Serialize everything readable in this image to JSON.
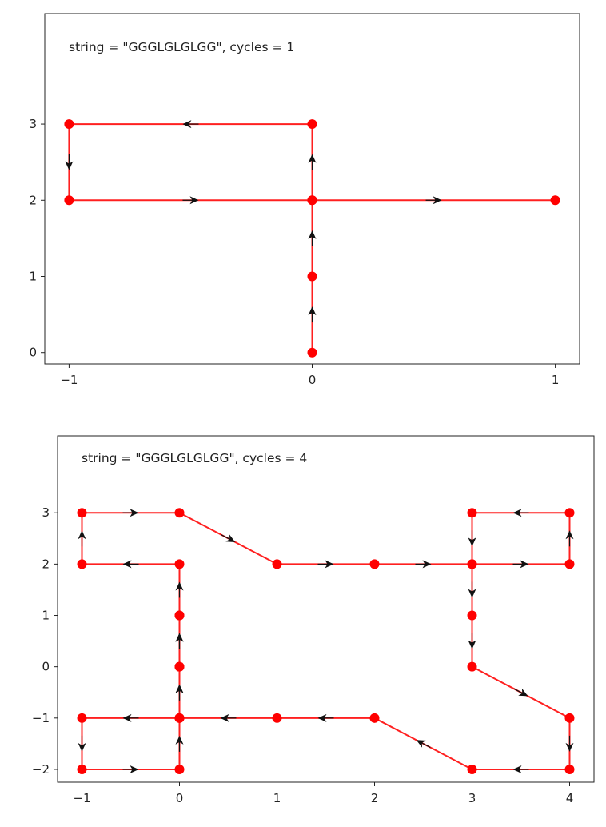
{
  "chart_data": [
    {
      "type": "line",
      "annotation": "string = \"GGGLGLGLGG\", cycles = 1",
      "x_ticks": [
        -1,
        0,
        1
      ],
      "x_tick_labels": [
        "−1",
        "0",
        "1"
      ],
      "y_ticks": [
        0,
        1,
        2,
        3
      ],
      "y_tick_labels": [
        "0",
        "1",
        "2",
        "3"
      ],
      "xlim": [
        -1.1,
        1.1
      ],
      "ylim": [
        -0.15,
        4.45
      ],
      "grid": false,
      "series": [
        {
          "color": "#ff0000",
          "x": [
            0,
            0,
            0,
            0,
            -1,
            -1,
            0,
            1
          ],
          "y": [
            0,
            1,
            2,
            3,
            3,
            2,
            2,
            2
          ]
        }
      ]
    },
    {
      "type": "line",
      "annotation": "string = \"GGGLGLGLGG\", cycles = 4",
      "x_ticks": [
        -1,
        0,
        1,
        2,
        3,
        4
      ],
      "x_tick_labels": [
        "−1",
        "0",
        "1",
        "2",
        "3",
        "4"
      ],
      "y_ticks": [
        -2,
        -1,
        0,
        1,
        2,
        3
      ],
      "y_tick_labels": [
        "−2",
        "−1",
        "0",
        "1",
        "2",
        "3"
      ],
      "xlim": [
        -1.25,
        4.25
      ],
      "ylim": [
        -2.25,
        4.5
      ],
      "grid": false,
      "series": [
        {
          "color": "#ff0000",
          "x": [
            0,
            0,
            0,
            0,
            -1,
            -1,
            0,
            1,
            2,
            3,
            4,
            4,
            3,
            3,
            3,
            3,
            4,
            4,
            3,
            2,
            1,
            0,
            -1,
            -1,
            0,
            0,
            0,
            0
          ],
          "y": [
            -1,
            0,
            1,
            2,
            2,
            3,
            3,
            2,
            2,
            2,
            2,
            3,
            3,
            2,
            1,
            0,
            -1,
            -2,
            -2,
            -1,
            -1,
            -1,
            -1,
            -2,
            -2,
            -1,
            0,
            1
          ]
        }
      ]
    }
  ]
}
